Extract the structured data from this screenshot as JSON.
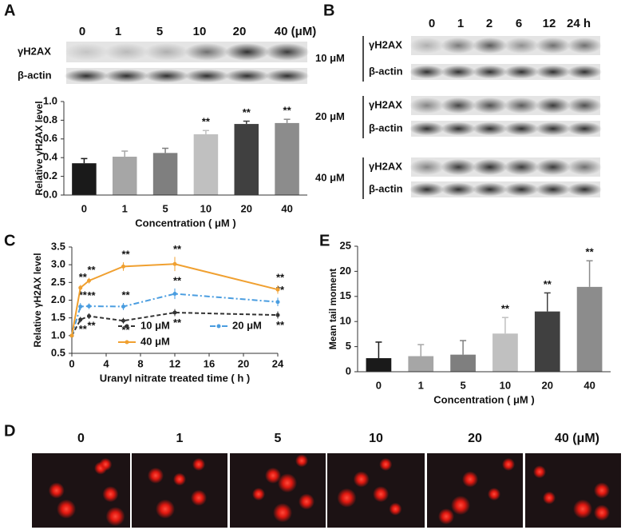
{
  "panel_labels": [
    "A",
    "B",
    "C",
    "D",
    "E"
  ],
  "blot_a": {
    "lanes": [
      "0",
      "1",
      "5",
      "10",
      "20",
      "40 (μM)"
    ],
    "rows": [
      "γH2AX",
      "β-actin"
    ]
  },
  "blot_b": {
    "lanes": [
      "0",
      "1",
      "2",
      "6",
      "12",
      "24 h"
    ],
    "groups": [
      {
        "dose": "10 μM",
        "rows": [
          "γH2AX",
          "β-actin"
        ]
      },
      {
        "dose": "20 μM",
        "rows": [
          "γH2AX",
          "β-actin"
        ]
      },
      {
        "dose": "40 μM",
        "rows": [
          "γH2AX",
          "β-actin"
        ]
      }
    ]
  },
  "comet_d": {
    "lanes": [
      "0",
      "1",
      "5",
      "10",
      "20",
      "40 (μM)"
    ]
  },
  "chart_data": [
    {
      "type": "bar",
      "ylabel": "Relative γH2AX level",
      "xlabel": "Concentration ( μM )",
      "categories": [
        "0",
        "1",
        "5",
        "10",
        "20",
        "40"
      ],
      "values": [
        0.34,
        0.41,
        0.45,
        0.65,
        0.76,
        0.77
      ],
      "errors": [
        0.05,
        0.06,
        0.05,
        0.04,
        0.03,
        0.04
      ],
      "colors": [
        "#1a1a1a",
        "#a6a6a6",
        "#7f7f7f",
        "#c0c0c0",
        "#404040",
        "#8c8c8c"
      ],
      "significance": [
        null,
        null,
        null,
        "**",
        "**",
        "**"
      ],
      "ylim": [
        0,
        1
      ],
      "yticks": [
        {
          "value": 0,
          "label": "0.0"
        },
        0.2,
        0.4,
        0.6,
        0.8,
        {
          "value": 1,
          "label": "1.0"
        }
      ]
    },
    {
      "type": "line",
      "ylabel": "Relative γH2AX level",
      "xlabel": "Uranyl nitrate treated time ( h )",
      "x": [
        0,
        1,
        2,
        6,
        12,
        24
      ],
      "legend": "lower left",
      "series": [
        {
          "name": "10 μM",
          "color": "#333333",
          "dash": "dashed",
          "label_position": "below",
          "values": [
            1.0,
            1.45,
            1.55,
            1.42,
            1.65,
            1.58
          ],
          "errors": [
            0.03,
            0.08,
            0.08,
            0.08,
            0.1,
            0.1
          ],
          "significance": [
            null,
            "**",
            "**",
            "**",
            "**",
            "**"
          ]
        },
        {
          "name": "20 μM",
          "color": "#4a9de0",
          "dash": "dashdot",
          "label_position": "above",
          "values": [
            1.0,
            1.82,
            1.83,
            1.82,
            2.18,
            1.95
          ],
          "errors": [
            0.03,
            0.1,
            0.08,
            0.1,
            0.15,
            0.12
          ],
          "significance": [
            null,
            "**",
            "**",
            "**",
            "**",
            "**"
          ]
        },
        {
          "name": "40 μM",
          "color": "#f0a030",
          "dash": "solid",
          "label_position": "above",
          "values": [
            1.0,
            2.35,
            2.55,
            2.95,
            3.02,
            2.3
          ],
          "errors": [
            0.03,
            0.08,
            0.08,
            0.12,
            0.2,
            0.12
          ],
          "significance": [
            null,
            "**",
            "**",
            "**",
            "**",
            "**"
          ]
        }
      ],
      "xlim": [
        0,
        24
      ],
      "xticks": [
        0,
        4,
        8,
        12,
        16,
        20,
        24
      ],
      "ylim": [
        0.5,
        3.5
      ],
      "yticks": [
        0.5,
        {
          "value": 1,
          "label": "1.0"
        },
        1.5,
        {
          "value": 2,
          "label": "2.0"
        },
        2.5,
        {
          "value": 3,
          "label": "3.0"
        },
        3.5
      ]
    },
    {
      "type": "bar",
      "ylabel": "Mean tail moment",
      "xlabel": "Concentration ( μM )",
      "categories": [
        "0",
        "1",
        "5",
        "10",
        "20",
        "40"
      ],
      "values": [
        2.7,
        3.1,
        3.4,
        7.6,
        12,
        16.9
      ],
      "errors": [
        3.2,
        2.3,
        2.8,
        3.2,
        3.7,
        5.2
      ],
      "colors": [
        "#1a1a1a",
        "#a6a6a6",
        "#7f7f7f",
        "#c0c0c0",
        "#404040",
        "#8c8c8c"
      ],
      "significance": [
        null,
        null,
        null,
        "**",
        "**",
        "**"
      ],
      "ylim": [
        0,
        25
      ],
      "yticks": [
        0,
        5,
        10,
        15,
        20,
        25
      ]
    }
  ]
}
